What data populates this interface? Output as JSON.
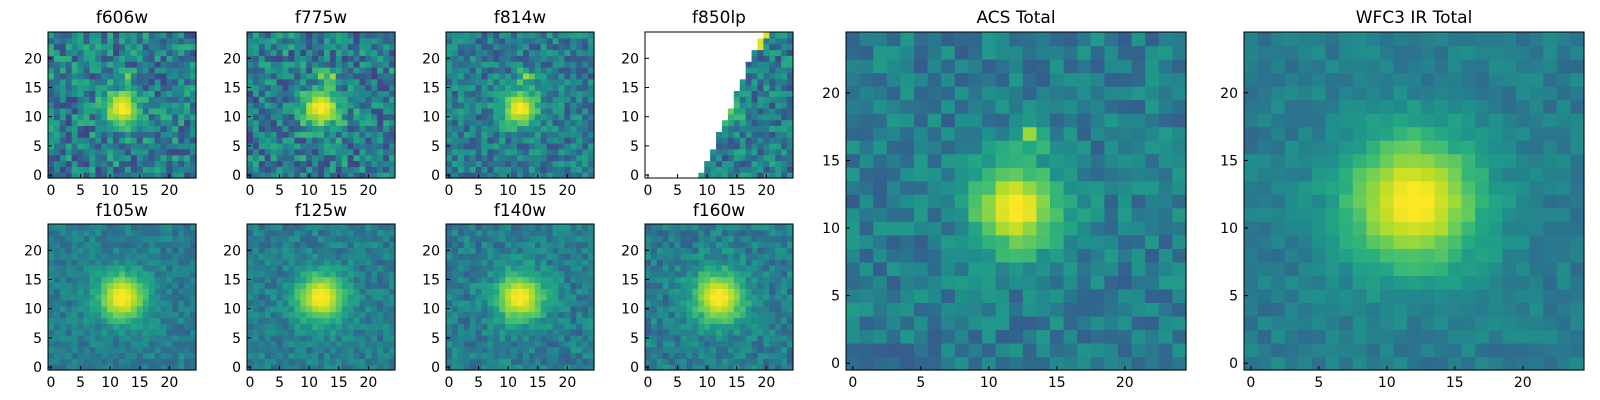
{
  "chart_data": [
    {
      "type": "heatmap",
      "title": "f606w",
      "colormap": "viridis",
      "xticks": [
        "0",
        "5",
        "10",
        "15",
        "20"
      ],
      "yticks": [
        "0",
        "5",
        "10",
        "15",
        "20"
      ],
      "xlim": [
        0,
        25
      ],
      "ylim": [
        0,
        25
      ],
      "peak": [
        12,
        11.5
      ],
      "sigma": 2.2,
      "noise": 0.45,
      "seed": 11
    },
    {
      "type": "heatmap",
      "title": "f775w",
      "colormap": "viridis",
      "xticks": [
        "0",
        "5",
        "10",
        "15",
        "20"
      ],
      "yticks": [
        "0",
        "5",
        "10",
        "15",
        "20"
      ],
      "xlim": [
        0,
        25
      ],
      "ylim": [
        0,
        25
      ],
      "peak": [
        12,
        11.5
      ],
      "sigma": 2.4,
      "noise": 0.45,
      "seed": 23
    },
    {
      "type": "heatmap",
      "title": "f814w",
      "colormap": "viridis",
      "xticks": [
        "0",
        "5",
        "10",
        "15",
        "20"
      ],
      "yticks": [
        "0",
        "5",
        "10",
        "15",
        "20"
      ],
      "xlim": [
        0,
        25
      ],
      "ylim": [
        0,
        25
      ],
      "peak": [
        12,
        11.5
      ],
      "sigma": 2.2,
      "noise": 0.35,
      "seed": 37
    },
    {
      "type": "heatmap",
      "title": "f850lp",
      "colormap": "viridis",
      "xticks": [
        "0",
        "5",
        "10",
        "15",
        "20"
      ],
      "yticks": [
        "0",
        "5",
        "10",
        "15",
        "20"
      ],
      "xlim": [
        0,
        25
      ],
      "ylim": [
        0,
        25
      ],
      "peak": [
        12,
        11.5
      ],
      "sigma": 2.2,
      "noise": 0.4,
      "seed": 41,
      "masked": "left-diagonal"
    },
    {
      "type": "heatmap",
      "title": "f105w",
      "colormap": "viridis",
      "xticks": [
        "0",
        "5",
        "10",
        "15",
        "20"
      ],
      "yticks": [
        "0",
        "5",
        "10",
        "15",
        "20"
      ],
      "xlim": [
        0,
        25
      ],
      "ylim": [
        0,
        25
      ],
      "peak": [
        12,
        12
      ],
      "sigma": 3.0,
      "noise": 0.2,
      "seed": 53
    },
    {
      "type": "heatmap",
      "title": "f125w",
      "colormap": "viridis",
      "xticks": [
        "0",
        "5",
        "10",
        "15",
        "20"
      ],
      "yticks": [
        "0",
        "5",
        "10",
        "15",
        "20"
      ],
      "xlim": [
        0,
        25
      ],
      "ylim": [
        0,
        25
      ],
      "peak": [
        12,
        12
      ],
      "sigma": 3.0,
      "noise": 0.22,
      "seed": 61
    },
    {
      "type": "heatmap",
      "title": "f140w",
      "colormap": "viridis",
      "xticks": [
        "0",
        "5",
        "10",
        "15",
        "20"
      ],
      "yticks": [
        "0",
        "5",
        "10",
        "15",
        "20"
      ],
      "xlim": [
        0,
        25
      ],
      "ylim": [
        0,
        25
      ],
      "peak": [
        12,
        12
      ],
      "sigma": 3.0,
      "noise": 0.25,
      "seed": 73
    },
    {
      "type": "heatmap",
      "title": "f160w",
      "colormap": "viridis",
      "xticks": [
        "0",
        "5",
        "10",
        "15",
        "20"
      ],
      "yticks": [
        "0",
        "5",
        "10",
        "15",
        "20"
      ],
      "xlim": [
        0,
        25
      ],
      "ylim": [
        0,
        25
      ],
      "peak": [
        12,
        12
      ],
      "sigma": 3.2,
      "noise": 0.25,
      "seed": 89
    },
    {
      "type": "heatmap",
      "title": "ACS Total",
      "colormap": "viridis",
      "xticks": [
        "0",
        "5",
        "10",
        "15",
        "20"
      ],
      "yticks": [
        "0",
        "5",
        "10",
        "15",
        "20"
      ],
      "xlim": [
        0,
        25
      ],
      "ylim": [
        0,
        25
      ],
      "peak": [
        12,
        11.5
      ],
      "sigma": 2.3,
      "noise": 0.25,
      "seed": 97
    },
    {
      "type": "heatmap",
      "title": "WFC3 IR Total",
      "colormap": "viridis",
      "xticks": [
        "0",
        "5",
        "10",
        "15",
        "20"
      ],
      "yticks": [
        "0",
        "5",
        "10",
        "15",
        "20"
      ],
      "xlim": [
        0,
        25
      ],
      "ylim": [
        0,
        25
      ],
      "peak": [
        12,
        12
      ],
      "sigma": 3.6,
      "noise": 0.15,
      "seed": 101
    }
  ]
}
